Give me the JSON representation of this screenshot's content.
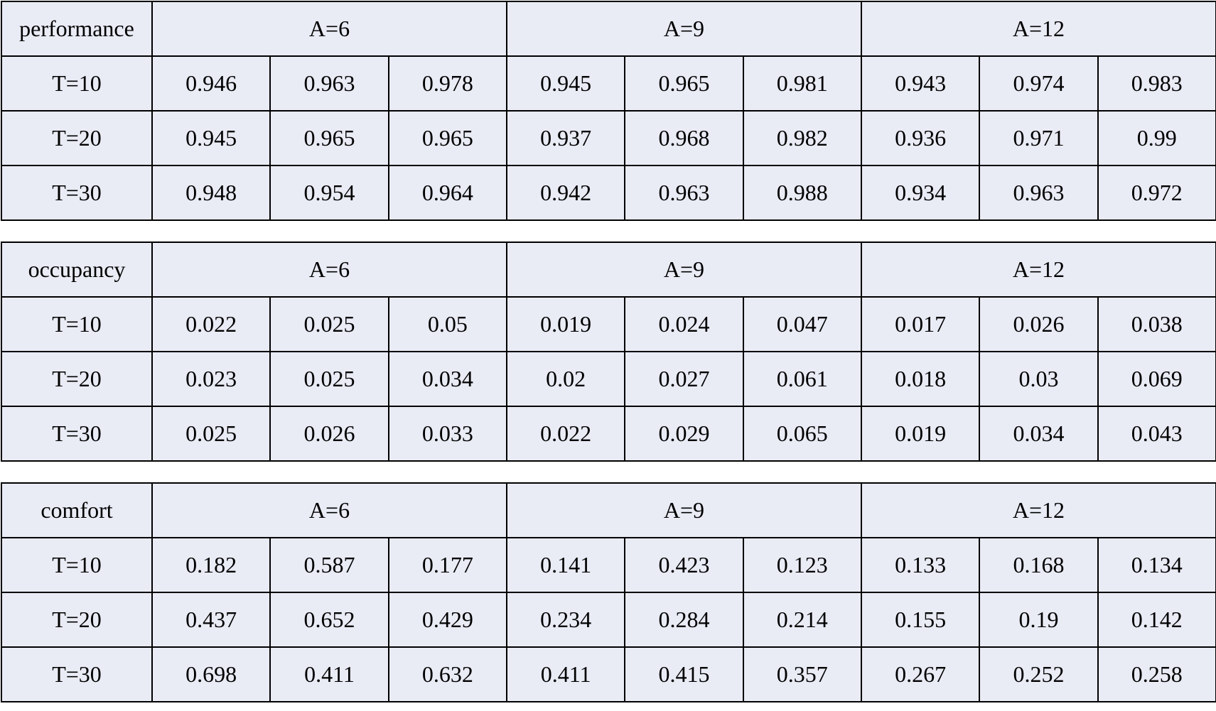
{
  "colors": {
    "cell_background": "#e9ebf5",
    "border": "#000000",
    "first_value_column": "#ed7d31",
    "second_value_column": "#70ad47",
    "third_value_column": "#ff00ff"
  },
  "tables": [
    {
      "metric": "performance",
      "groups": [
        "A=6",
        "A=9",
        "A=12"
      ],
      "rows": [
        {
          "label": "T=10",
          "values": [
            "0.946",
            "0.963",
            "0.978",
            "0.945",
            "0.965",
            "0.981",
            "0.943",
            "0.974",
            "0.983"
          ]
        },
        {
          "label": "T=20",
          "values": [
            "0.945",
            "0.965",
            "0.965",
            "0.937",
            "0.968",
            "0.982",
            "0.936",
            "0.971",
            "0.99"
          ]
        },
        {
          "label": "T=30",
          "values": [
            "0.948",
            "0.954",
            "0.964",
            "0.942",
            "0.963",
            "0.988",
            "0.934",
            "0.963",
            "0.972"
          ]
        }
      ]
    },
    {
      "metric": "occupancy",
      "groups": [
        "A=6",
        "A=9",
        "A=12"
      ],
      "rows": [
        {
          "label": "T=10",
          "values": [
            "0.022",
            "0.025",
            "0.05",
            "0.019",
            "0.024",
            "0.047",
            "0.017",
            "0.026",
            "0.038"
          ]
        },
        {
          "label": "T=20",
          "values": [
            "0.023",
            "0.025",
            "0.034",
            "0.02",
            "0.027",
            "0.061",
            "0.018",
            "0.03",
            "0.069"
          ]
        },
        {
          "label": "T=30",
          "values": [
            "0.025",
            "0.026",
            "0.033",
            "0.022",
            "0.029",
            "0.065",
            "0.019",
            "0.034",
            "0.043"
          ]
        }
      ]
    },
    {
      "metric": "comfort",
      "groups": [
        "A=6",
        "A=9",
        "A=12"
      ],
      "rows": [
        {
          "label": "T=10",
          "values": [
            "0.182",
            "0.587",
            "0.177",
            "0.141",
            "0.423",
            "0.123",
            "0.133",
            "0.168",
            "0.134"
          ]
        },
        {
          "label": "T=20",
          "values": [
            "0.437",
            "0.652",
            "0.429",
            "0.234",
            "0.284",
            "0.214",
            "0.155",
            "0.19",
            "0.142"
          ]
        },
        {
          "label": "T=30",
          "values": [
            "0.698",
            "0.411",
            "0.632",
            "0.411",
            "0.415",
            "0.357",
            "0.267",
            "0.252",
            "0.258"
          ]
        }
      ]
    }
  ]
}
